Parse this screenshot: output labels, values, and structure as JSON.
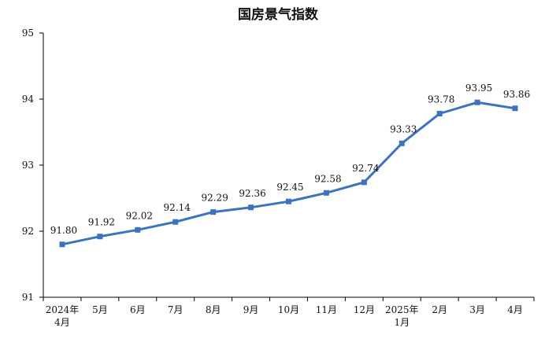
{
  "chart_data": {
    "type": "line",
    "title": "国房景气指数",
    "xlabel": "",
    "ylabel": "",
    "categories": [
      [
        "2024年",
        "4月"
      ],
      [
        "5月"
      ],
      [
        "6月"
      ],
      [
        "7月"
      ],
      [
        "8月"
      ],
      [
        "9月"
      ],
      [
        "10月"
      ],
      [
        "11月"
      ],
      [
        "12月"
      ],
      [
        "2025年",
        "1月"
      ],
      [
        "2月"
      ],
      [
        "3月"
      ],
      [
        "4月"
      ]
    ],
    "series": [
      {
        "values": [
          91.8,
          91.92,
          92.02,
          92.14,
          92.29,
          92.36,
          92.45,
          92.58,
          92.74,
          93.33,
          93.78,
          93.95,
          93.86
        ],
        "labels": [
          "91.80",
          "91.92",
          "92.02",
          "92.14",
          "92.29",
          "92.36",
          "92.45",
          "92.58",
          "92.74",
          "93.33",
          "93.78",
          "93.95",
          "93.86"
        ],
        "color": "#3a73c0"
      }
    ],
    "ylim": [
      91,
      95
    ],
    "yticks": [
      "91",
      "92",
      "93",
      "94",
      "95"
    ],
    "grid": false,
    "legend": "none",
    "markers": "square"
  }
}
